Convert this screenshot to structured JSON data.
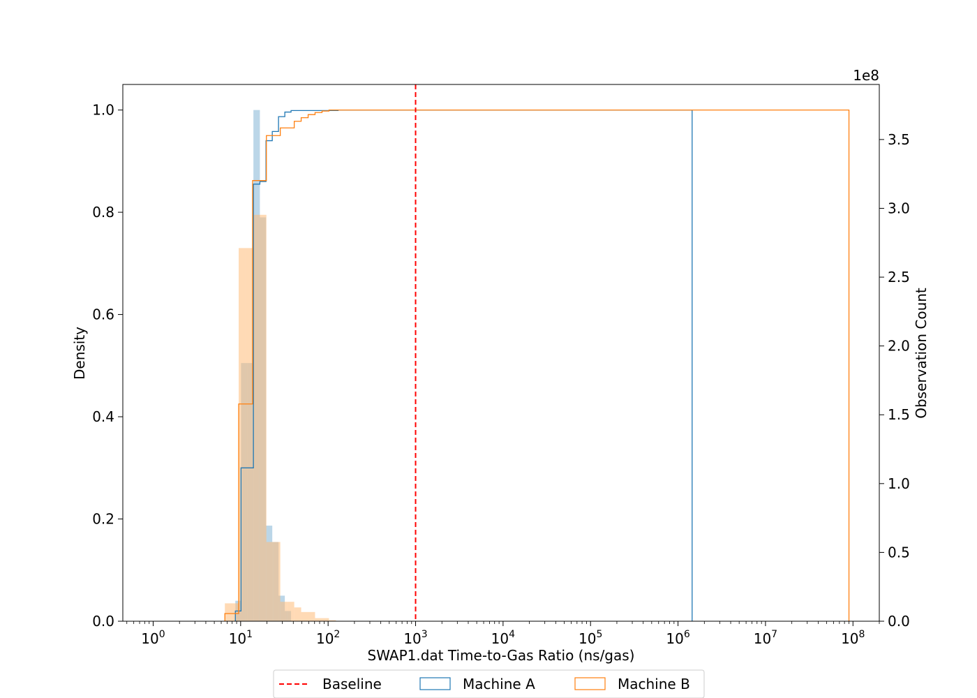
{
  "chart_data": {
    "type": "histogram",
    "xlabel": "SWAP1.dat Time-to-Gas Ratio (ns/gas)",
    "ylabel_left": "Density",
    "ylabel_right": "Observation Count",
    "right_axis_offset_label": "1e8",
    "x_scale": "log",
    "xlim": [
      0.45,
      200000000
    ],
    "ylim_left": [
      0,
      1.05
    ],
    "ylim_right": [
      0,
      3.9
    ],
    "x_tick_exponents": [
      0,
      1,
      2,
      3,
      4,
      5,
      6,
      7,
      8
    ],
    "left_ticks": [
      "0.0",
      "0.2",
      "0.4",
      "0.6",
      "0.8",
      "1.0"
    ],
    "right_ticks": [
      "0.0",
      "0.5",
      "1.0",
      "1.5",
      "2.0",
      "2.5",
      "3.0",
      "3.5"
    ],
    "left_tick_values": [
      0,
      0.2,
      0.4,
      0.6,
      0.8,
      1.0
    ],
    "right_tick_values": [
      0,
      0.5,
      1.0,
      1.5,
      2.0,
      2.5,
      3.0,
      3.5
    ],
    "baseline": {
      "name": "Baseline",
      "x": 1000,
      "color": "#ff0000"
    },
    "legend_position": "bottom-center",
    "series": [
      {
        "name": "Machine A",
        "color": "#1f77b4",
        "fill_color": "#1f77b4",
        "fill_opacity": 0.3,
        "density_bins": [
          {
            "x0": 8.7,
            "x1": 10.1,
            "y": 0.04
          },
          {
            "x0": 10.1,
            "x1": 11.9,
            "y": 0.505
          },
          {
            "x0": 11.9,
            "x1": 14.0,
            "y": 0.505
          },
          {
            "x0": 14.0,
            "x1": 16.6,
            "y": 1.0
          },
          {
            "x0": 16.6,
            "x1": 19.5,
            "y": 0.79
          },
          {
            "x0": 19.5,
            "x1": 23.0,
            "y": 0.187
          },
          {
            "x0": 23.0,
            "x1": 27.1,
            "y": 0.155
          },
          {
            "x0": 27.1,
            "x1": 32.0,
            "y": 0.05
          },
          {
            "x0": 32.0,
            "x1": 37.7,
            "y": 0.02
          }
        ],
        "cumulative_steps": [
          {
            "x": 8.7,
            "y": 0.02
          },
          {
            "x": 10.1,
            "y": 0.3
          },
          {
            "x": 11.9,
            "y": 0.3
          },
          {
            "x": 14.0,
            "y": 0.855
          },
          {
            "x": 16.6,
            "y": 0.86
          },
          {
            "x": 19.5,
            "y": 0.94
          },
          {
            "x": 23.0,
            "y": 0.958
          },
          {
            "x": 27.1,
            "y": 0.987
          },
          {
            "x": 32.0,
            "y": 0.996
          },
          {
            "x": 37.7,
            "y": 0.999
          },
          {
            "x": 130.0,
            "y": 1.0
          },
          {
            "x": 1450000,
            "y": 1.0
          }
        ]
      },
      {
        "name": "Machine B",
        "color": "#ff7f0e",
        "fill_color": "#ffbb78",
        "fill_opacity": 0.55,
        "density_bins": [
          {
            "x0": 6.6,
            "x1": 7.9,
            "y": 0.035
          },
          {
            "x0": 7.9,
            "x1": 9.5,
            "y": 0.035
          },
          {
            "x0": 9.5,
            "x1": 11.4,
            "y": 0.73
          },
          {
            "x0": 11.4,
            "x1": 13.7,
            "y": 0.73
          },
          {
            "x0": 13.7,
            "x1": 16.4,
            "y": 0.795
          },
          {
            "x0": 16.4,
            "x1": 19.7,
            "y": 0.795
          },
          {
            "x0": 19.7,
            "x1": 23.7,
            "y": 0.155
          },
          {
            "x0": 23.7,
            "x1": 28.4,
            "y": 0.155
          },
          {
            "x0": 28.4,
            "x1": 34.1,
            "y": 0.038
          },
          {
            "x0": 34.1,
            "x1": 41.0,
            "y": 0.038
          },
          {
            "x0": 41.0,
            "x1": 49.2,
            "y": 0.027
          },
          {
            "x0": 49.2,
            "x1": 59.1,
            "y": 0.018
          },
          {
            "x0": 59.1,
            "x1": 70.9,
            "y": 0.018
          },
          {
            "x0": 70.9,
            "x1": 85.2,
            "y": 0.006
          },
          {
            "x0": 85.2,
            "x1": 102.3,
            "y": 0.006
          },
          {
            "x0": 102.3,
            "x1": 122.9,
            "y": 0.002
          }
        ],
        "cumulative_steps": [
          {
            "x": 6.6,
            "y": 0.015
          },
          {
            "x": 9.5,
            "y": 0.425
          },
          {
            "x": 13.7,
            "y": 0.862
          },
          {
            "x": 16.4,
            "y": 0.862
          },
          {
            "x": 19.7,
            "y": 0.95
          },
          {
            "x": 23.7,
            "y": 0.95
          },
          {
            "x": 28.4,
            "y": 0.965
          },
          {
            "x": 34.1,
            "y": 0.965
          },
          {
            "x": 41.0,
            "y": 0.978
          },
          {
            "x": 49.2,
            "y": 0.985
          },
          {
            "x": 59.1,
            "y": 0.991
          },
          {
            "x": 70.9,
            "y": 0.995
          },
          {
            "x": 85.2,
            "y": 0.998
          },
          {
            "x": 102.3,
            "y": 1.0
          },
          {
            "x": 90000000,
            "y": 1.0
          }
        ]
      }
    ]
  }
}
